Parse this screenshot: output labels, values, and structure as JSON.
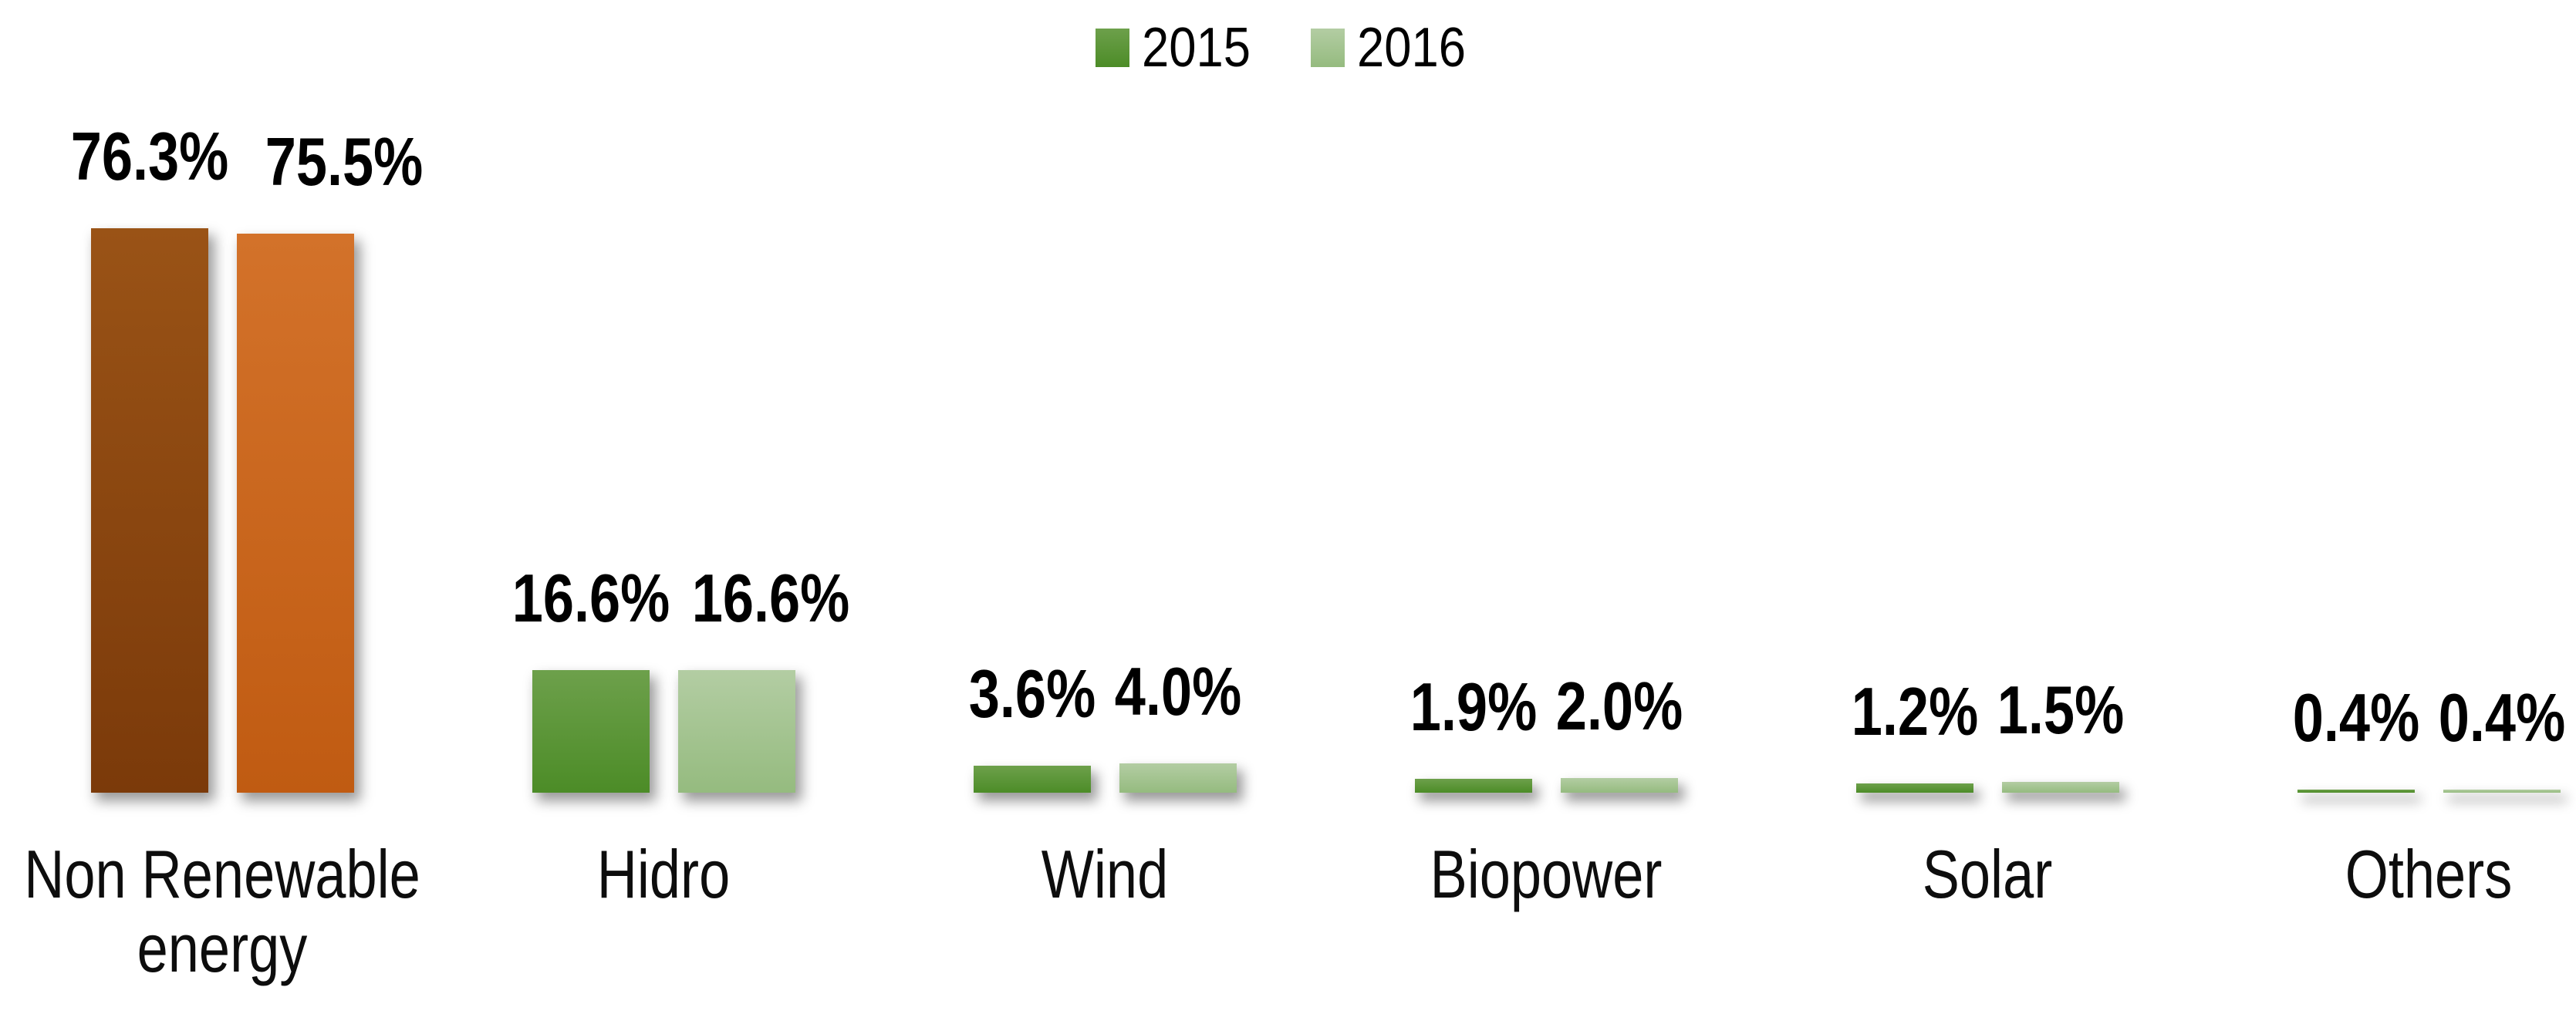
{
  "chart_data": {
    "type": "bar",
    "categories": [
      "Non Renewable energy",
      "Hidro",
      "Wind",
      "Biopower",
      "Solar",
      "Others"
    ],
    "category_label_lines": [
      [
        "Non Renewable",
        "energy"
      ],
      [
        "Hidro"
      ],
      [
        "Wind"
      ],
      [
        "Biopower"
      ],
      [
        "Solar"
      ],
      [
        "Others"
      ]
    ],
    "series": [
      {
        "name": "2015",
        "values": [
          76.3,
          16.6,
          3.6,
          1.9,
          1.2,
          0.4
        ],
        "value_labels": [
          "76.3%",
          "16.6%",
          "3.6%",
          "1.9%",
          "1.2%",
          "0.4%"
        ]
      },
      {
        "name": "2016",
        "values": [
          75.5,
          16.6,
          4.0,
          2.0,
          1.5,
          0.4
        ],
        "value_labels": [
          "75.5%",
          "16.6%",
          "4.0%",
          "2.0%",
          "1.5%",
          "0.4%"
        ]
      }
    ],
    "bar_colors": {
      "2015": [
        [
          "#9a5316",
          "#7b3a0a"
        ],
        [
          "#6da04b",
          "#4c8c27"
        ],
        [
          "#6da04b",
          "#4c8c27"
        ],
        [
          "#6da04b",
          "#4c8c27"
        ],
        [
          "#6da04b",
          "#4c8c27"
        ],
        [
          "#6da04b",
          "#4c8c27"
        ]
      ],
      "2016": [
        [
          "#d3722a",
          "#c05b12"
        ],
        [
          "#b3cda3",
          "#95bb7f"
        ],
        [
          "#b3cda3",
          "#95bb7f"
        ],
        [
          "#b3cda3",
          "#95bb7f"
        ],
        [
          "#b3cda3",
          "#95bb7f"
        ],
        [
          "#b3cda3",
          "#95bb7f"
        ]
      ]
    },
    "title": "",
    "xlabel": "",
    "ylabel": "",
    "ylim": [
      0,
      80
    ],
    "unit": "%",
    "grid": false,
    "axes_visible": false,
    "legend_position": "top-center",
    "value_label_style": "bold, above bars"
  }
}
